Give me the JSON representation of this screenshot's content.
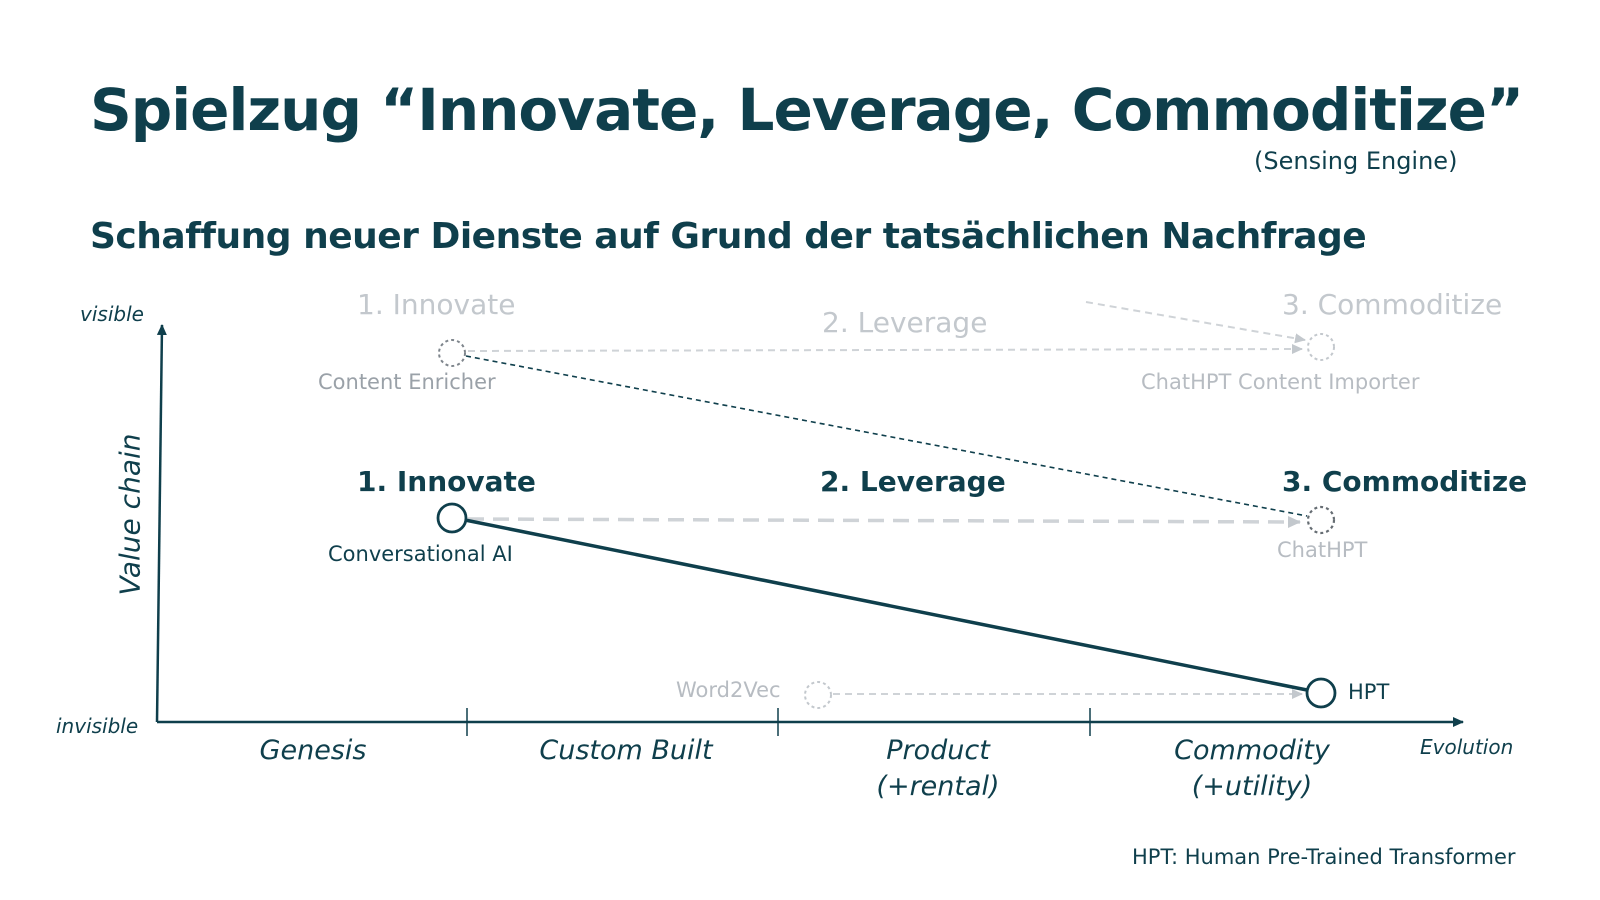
{
  "title": "Spielzug “Innovate, Leverage, Commoditize”",
  "subtitle_note": "(Sensing Engine)",
  "headline": "Schaffung neuer Dienste auf Grund der tatsächlichen Nachfrage",
  "axes": {
    "y_label": "Value chain",
    "y_top": "visible",
    "y_bottom": "invisible",
    "x_label": "Evolution"
  },
  "stages": [
    {
      "label": "Genesis",
      "sub": ""
    },
    {
      "label": "Custom Built",
      "sub": ""
    },
    {
      "label": "Product",
      "sub": "(+rental)"
    },
    {
      "label": "Commodity",
      "sub": "(+utility)"
    }
  ],
  "upper_row": {
    "phase_1": "1. Innovate",
    "phase_2": "2. Leverage",
    "phase_3": "3. Commoditize",
    "node_start": "Content Enricher",
    "node_end": "ChatHPT Content Importer"
  },
  "middle_row": {
    "phase_1": "1. Innovate",
    "phase_2": "2. Leverage",
    "phase_3": "3. Commoditize",
    "node_start": "Conversational AI",
    "node_end": "ChatHPT"
  },
  "lower_row": {
    "node_start": "Word2Vec",
    "node_end": "HPT"
  },
  "footnote": "HPT: Human Pre-Trained Transformer",
  "colors": {
    "dark": "#0f3f4c",
    "faded": "#c3c8cd",
    "line_faded": "#cfd3d7"
  }
}
